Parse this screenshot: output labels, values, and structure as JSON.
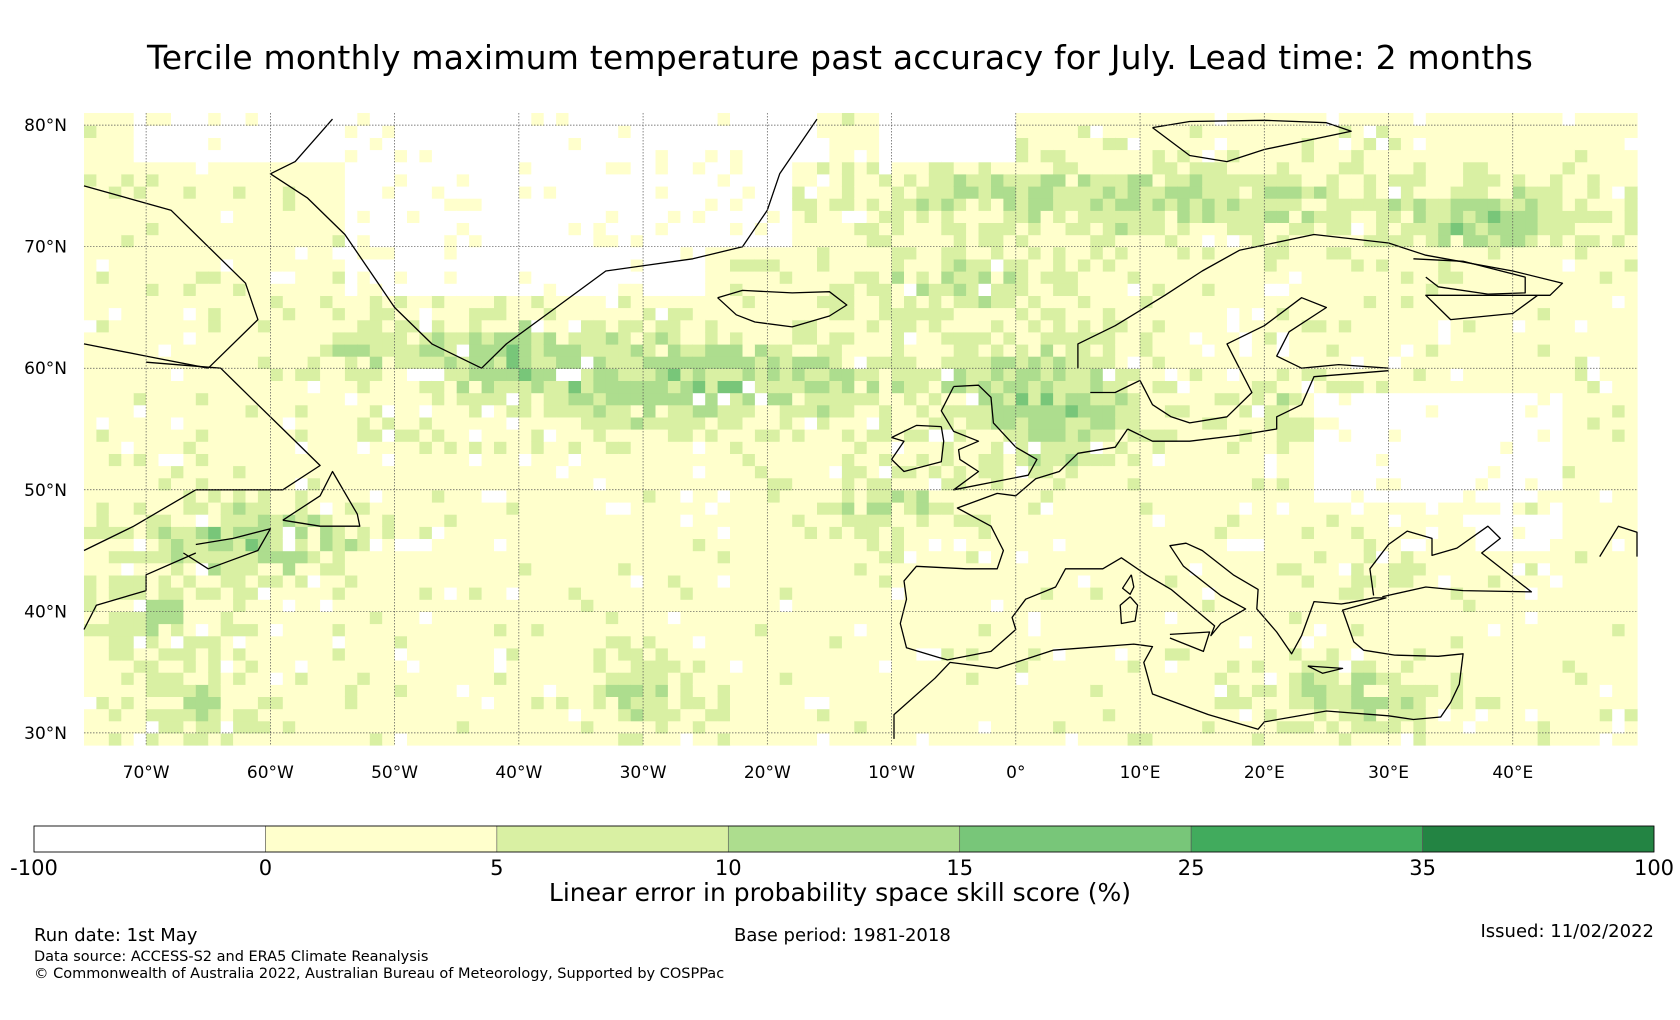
{
  "title": "Tercile monthly maximum temperature past accuracy for July. Lead time: 2 months",
  "map": {
    "lon_range": [
      -75,
      50
    ],
    "lat_range": [
      29,
      81
    ],
    "lat_ticks": [
      {
        "value": 80,
        "label": "80°N"
      },
      {
        "value": 70,
        "label": "70°N"
      },
      {
        "value": 60,
        "label": "60°N"
      },
      {
        "value": 50,
        "label": "50°N"
      },
      {
        "value": 40,
        "label": "40°N"
      },
      {
        "value": 30,
        "label": "30°N"
      }
    ],
    "lon_ticks": [
      {
        "value": -70,
        "label": "70°W"
      },
      {
        "value": -60,
        "label": "60°W"
      },
      {
        "value": -50,
        "label": "50°W"
      },
      {
        "value": -40,
        "label": "40°W"
      },
      {
        "value": -30,
        "label": "30°W"
      },
      {
        "value": -20,
        "label": "20°W"
      },
      {
        "value": -10,
        "label": "10°W"
      },
      {
        "value": 0,
        "label": "0°"
      },
      {
        "value": 10,
        "label": "10°E"
      },
      {
        "value": 20,
        "label": "20°E"
      },
      {
        "value": 30,
        "label": "30°E"
      },
      {
        "value": 40,
        "label": "40°E"
      }
    ],
    "gridlines": true
  },
  "colorbar": {
    "title": "Linear error in probability space skill score (%)",
    "boundaries": [
      "-100",
      "0",
      "5",
      "10",
      "15",
      "25",
      "35",
      "100"
    ],
    "colors": [
      "#ffffff",
      "#ffffcc",
      "#d9f0a3",
      "#addd8e",
      "#78c679",
      "#41ab5d",
      "#238443"
    ]
  },
  "footer": {
    "run_date": "Run date: 1st May",
    "base_period": "Base period: 1981-2018",
    "issued": "Issued: 11/02/2022",
    "data_source": "Data source: ACCESS-S2 and ERA5 Climate Reanalysis",
    "copyright": "© Commonwealth of Australia 2022, Australian Bureau of Meteorology, Supported by COSPPac"
  }
}
